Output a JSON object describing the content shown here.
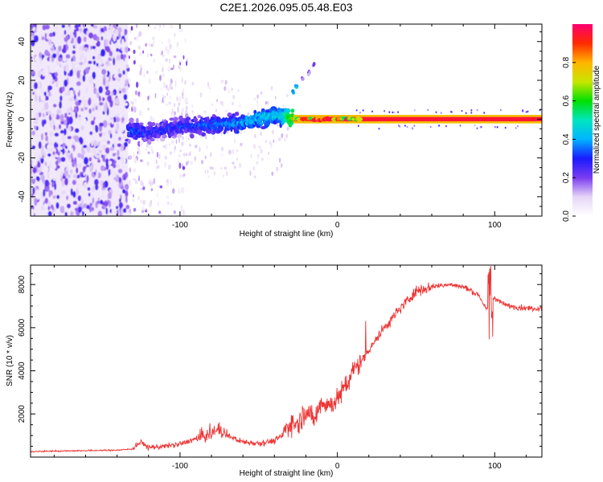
{
  "title": "C2E1.2026.095.05.48.E03",
  "chart_data": [
    {
      "type": "heatmap",
      "name": "spectrogram",
      "xlabel": "Height of straight line (km)",
      "ylabel": "Frequency (Hz)",
      "xlim": [
        -195,
        130
      ],
      "ylim": [
        -50,
        49
      ],
      "x_ticks": [
        -100,
        0,
        100
      ],
      "x_tick_labels": [
        "-100",
        "0",
        "100"
      ],
      "y_ticks": [
        -40,
        -20,
        0,
        20,
        40
      ],
      "y_tick_labels": [
        "-40",
        "-20",
        "0",
        "20",
        "40"
      ],
      "grid": false,
      "noise_region_x": [
        -195,
        -133
      ],
      "sparse_region_x": [
        -133,
        -120
      ],
      "signal_track": {
        "x": [
          -133,
          -120,
          -100,
          -80,
          -60,
          -45,
          -35,
          -28,
          -20,
          0,
          20,
          50,
          80,
          100,
          130
        ],
        "freq": [
          -6,
          -7,
          -4,
          -3,
          -2,
          1,
          2,
          0,
          0,
          0,
          0,
          0,
          0,
          0,
          0
        ],
        "amplitude": [
          0.35,
          0.3,
          0.3,
          0.35,
          0.4,
          0.45,
          0.45,
          0.7,
          0.85,
          0.9,
          0.95,
          0.95,
          0.95,
          0.95,
          0.95
        ]
      },
      "side_branch": {
        "x": [
          -28,
          -26,
          -22,
          -18,
          -15
        ],
        "freq": [
          14,
          17,
          21,
          24,
          28
        ]
      }
    },
    {
      "type": "line",
      "name": "snr-plot",
      "xlabel": "Height of straight line (km)",
      "ylabel": "SNR (10 * v/v)",
      "xlim": [
        -195,
        130
      ],
      "ylim": [
        0,
        8900
      ],
      "x_ticks": [
        -100,
        0,
        100
      ],
      "x_tick_labels": [
        "-100",
        "0",
        "100"
      ],
      "y_ticks": [
        2000,
        4000,
        6000,
        8000
      ],
      "y_tick_labels": [
        "2000",
        "4000",
        "6000",
        "8000"
      ],
      "grid": false,
      "series": [
        {
          "name": "SNR",
          "color": "#ee3333",
          "x": [
            -195,
            -180,
            -160,
            -140,
            -130,
            -125,
            -120,
            -110,
            -100,
            -90,
            -80,
            -75,
            -70,
            -60,
            -50,
            -40,
            -35,
            -30,
            -25,
            -20,
            -15,
            -10,
            -5,
            0,
            5,
            10,
            15,
            20,
            30,
            40,
            50,
            60,
            70,
            80,
            90,
            95,
            98,
            100,
            105,
            110,
            120,
            130
          ],
          "y": [
            250,
            280,
            300,
            320,
            380,
            700,
            450,
            500,
            600,
            850,
            1100,
            1300,
            1000,
            700,
            650,
            750,
            1000,
            1600,
            1500,
            2200,
            1700,
            2600,
            2400,
            2700,
            3200,
            4000,
            4400,
            5000,
            6000,
            6900,
            7700,
            7900,
            8000,
            7900,
            7500,
            6800,
            7200,
            7400,
            7100,
            7000,
            6900,
            6900
          ]
        }
      ]
    },
    {
      "type": "colorbar",
      "name": "colorbar",
      "label": "Normalized spectral amplitude",
      "range": [
        0,
        1
      ],
      "ticks": [
        0.0,
        0.2,
        0.4,
        0.6,
        0.8
      ],
      "tick_labels": [
        "0.0",
        "0.2",
        "0.4",
        "0.6",
        "0.8"
      ],
      "colors": [
        "#ffffff",
        "#e6d6f7",
        "#7a3cf0",
        "#1a1aff",
        "#00b4ff",
        "#00e5c0",
        "#00e000",
        "#c8e600",
        "#ffb400",
        "#ff2a00",
        "#ff0070"
      ]
    }
  ]
}
